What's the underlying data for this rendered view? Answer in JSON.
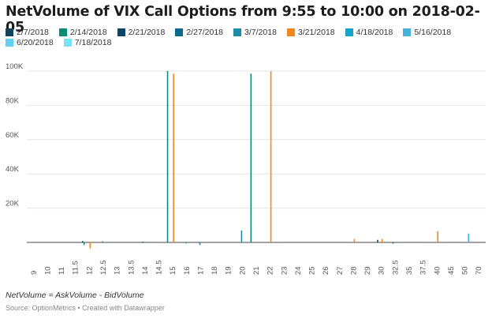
{
  "chart_data": {
    "type": "bar",
    "title": "NetVolume of VIX Call Options from 9:55 to 10:00 on 2018-02-05",
    "xlabel": "",
    "ylabel": "",
    "ylim": [
      -3000,
      100000
    ],
    "yticks": [
      20000,
      40000,
      60000,
      80000,
      100000
    ],
    "ytick_labels": [
      "20K",
      "40K",
      "60K",
      "80K",
      "100K"
    ],
    "grid": true,
    "legend_position": "top",
    "categories": [
      "9",
      "10",
      "11",
      "11.5",
      "12",
      "12.5",
      "13",
      "13.5",
      "14",
      "14.5",
      "15",
      "16",
      "17",
      "18",
      "19",
      "20",
      "21",
      "22",
      "23",
      "24",
      "25",
      "26",
      "27",
      "28",
      "29",
      "30",
      "32.5",
      "35",
      "37.5",
      "40",
      "45",
      "50",
      "70"
    ],
    "series": [
      {
        "name": "2/7/2018",
        "color": "#11445b",
        "values": [
          0,
          0,
          0,
          0,
          800,
          0,
          0,
          0,
          0,
          0,
          0,
          0,
          0,
          0,
          0,
          0,
          0,
          0,
          0,
          0,
          0,
          0,
          0,
          0,
          0,
          0,
          0,
          0,
          0,
          0,
          0,
          0,
          0
        ]
      },
      {
        "name": "2/14/2018",
        "color": "#0b8c74",
        "values": [
          0,
          0,
          0,
          0,
          -1500,
          0,
          0,
          0,
          0,
          0,
          100000,
          0,
          0,
          0,
          0,
          0,
          98500,
          0,
          0,
          0,
          0,
          0,
          0,
          0,
          0,
          0,
          0,
          0,
          0,
          0,
          0,
          0,
          0
        ]
      },
      {
        "name": "2/21/2018",
        "color": "#0b4566",
        "values": [
          0,
          0,
          0,
          0,
          0,
          0,
          0,
          0,
          0,
          0,
          0,
          0,
          0,
          0,
          0,
          0,
          0,
          0,
          0,
          0,
          0,
          0,
          0,
          0,
          0,
          1500,
          0,
          0,
          0,
          0,
          0,
          0,
          0
        ]
      },
      {
        "name": "2/27/2018",
        "color": "#0d6a8e",
        "values": [
          0,
          0,
          0,
          0,
          0,
          0,
          0,
          0,
          500,
          0,
          0,
          0,
          0,
          0,
          0,
          0,
          0,
          0,
          0,
          0,
          0,
          0,
          0,
          0,
          0,
          0,
          -700,
          0,
          0,
          0,
          0,
          0,
          0
        ]
      },
      {
        "name": "3/7/2018",
        "color": "#1d8dab",
        "values": [
          0,
          0,
          0,
          0,
          0,
          700,
          0,
          0,
          0,
          0,
          0,
          -600,
          -1500,
          0,
          0,
          7000,
          0,
          0,
          0,
          0,
          0,
          0,
          0,
          0,
          0,
          0,
          0,
          0,
          0,
          0,
          0,
          0,
          0
        ]
      },
      {
        "name": "3/21/2018",
        "color": "#f0891c",
        "values": [
          0,
          0,
          0,
          0,
          -3500,
          0,
          0,
          0,
          0,
          0,
          98500,
          0,
          0,
          0,
          0,
          0,
          0,
          99800,
          0,
          0,
          0,
          0,
          0,
          2000,
          0,
          2000,
          0,
          0,
          0,
          6500,
          0,
          0,
          0
        ]
      },
      {
        "name": "4/18/2018",
        "color": "#15a4c9",
        "values": [
          0,
          0,
          0,
          0,
          0,
          0,
          0,
          0,
          0,
          0,
          0,
          0,
          0,
          0,
          0,
          0,
          0,
          0,
          0,
          0,
          0,
          0,
          0,
          0,
          0,
          0,
          0,
          0,
          0,
          0,
          0,
          0,
          0
        ]
      },
      {
        "name": "5/16/2018",
        "color": "#46b3dd",
        "values": [
          0,
          0,
          0,
          0,
          0,
          0,
          0,
          0,
          0,
          0,
          0,
          0,
          0,
          0,
          0,
          0,
          0,
          0,
          0,
          0,
          0,
          0,
          0,
          0,
          0,
          0,
          0,
          0,
          0,
          0,
          0,
          5200,
          0
        ]
      },
      {
        "name": "6/20/2018",
        "color": "#5fd0ee",
        "values": [
          0,
          0,
          0,
          0,
          0,
          0,
          0,
          0,
          0,
          0,
          0,
          0,
          0,
          0,
          0,
          0,
          0,
          0,
          0,
          0,
          0,
          0,
          0,
          0,
          0,
          0,
          0,
          0,
          0,
          0,
          0,
          0,
          0
        ]
      },
      {
        "name": "7/18/2018",
        "color": "#78e3f5",
        "values": [
          0,
          0,
          0,
          0,
          0,
          0,
          0,
          0,
          0,
          0,
          0,
          0,
          0,
          0,
          0,
          0,
          0,
          0,
          0,
          0,
          0,
          0,
          0,
          0,
          0,
          0,
          0,
          0,
          0,
          0,
          0,
          0,
          0
        ]
      }
    ]
  },
  "note": "NetVolume = AskVolume - BidVolume",
  "source": "Source: OptionMetrics • Created with Datawrapper"
}
